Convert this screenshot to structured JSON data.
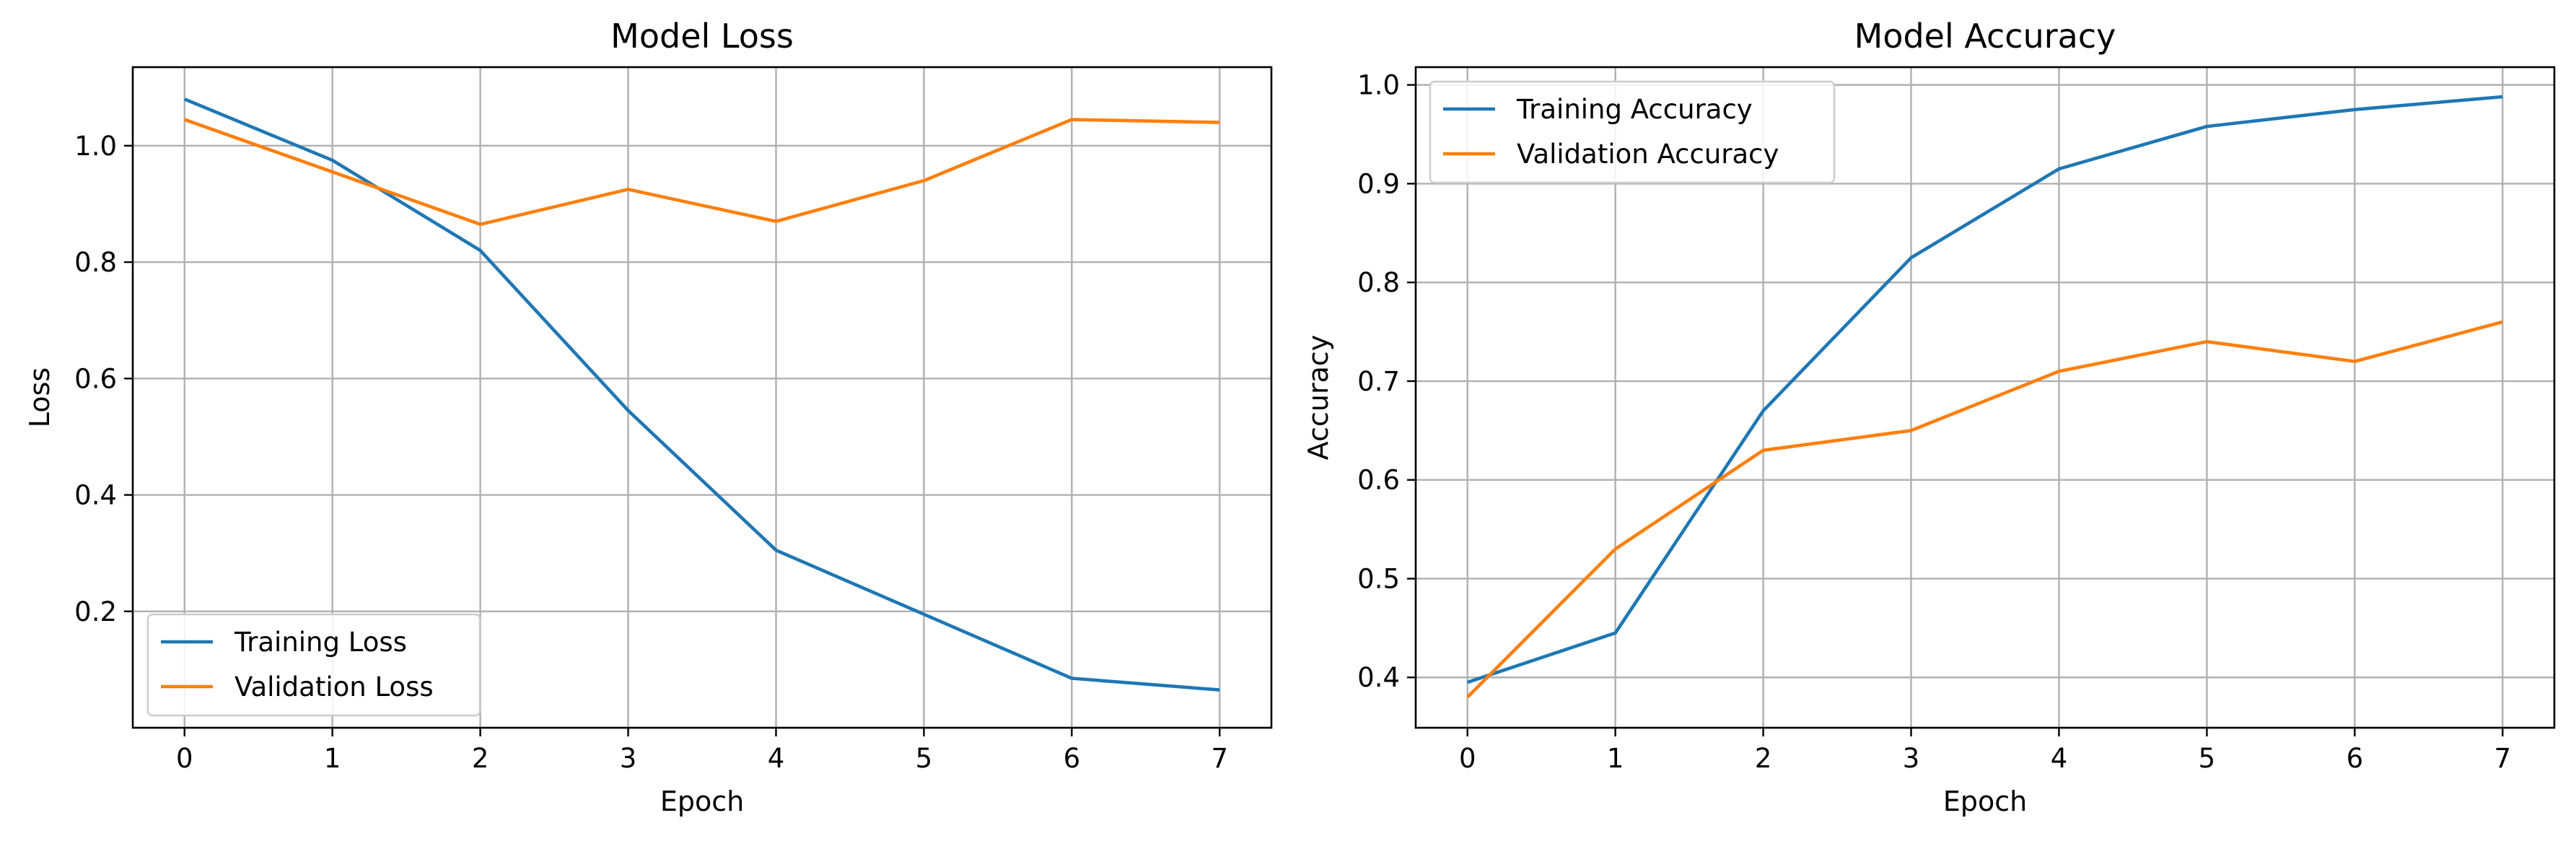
{
  "chart_data": [
    {
      "type": "line",
      "title": "Model Loss",
      "xlabel": "Epoch",
      "ylabel": "Loss",
      "x": [
        0,
        1,
        2,
        3,
        4,
        5,
        6,
        7
      ],
      "xticks": [
        "0",
        "1",
        "2",
        "3",
        "4",
        "5",
        "6",
        "7"
      ],
      "yticks": [
        "0.2",
        "0.4",
        "0.6",
        "0.8",
        "1.0"
      ],
      "xlim": [
        -0.35,
        7.35
      ],
      "ylim": [
        0.0,
        1.135
      ],
      "grid": true,
      "legend_position": "lower-left",
      "series": [
        {
          "name": "Training Loss",
          "color": "#1f77b4",
          "values": [
            1.08,
            0.975,
            0.82,
            0.545,
            0.305,
            0.195,
            0.085,
            0.065
          ]
        },
        {
          "name": "Validation Loss",
          "color": "#ff7f0e",
          "values": [
            1.045,
            0.955,
            0.865,
            0.925,
            0.87,
            0.94,
            1.045,
            1.04
          ]
        }
      ]
    },
    {
      "type": "line",
      "title": "Model Accuracy",
      "xlabel": "Epoch",
      "ylabel": "Accuracy",
      "x": [
        0,
        1,
        2,
        3,
        4,
        5,
        6,
        7
      ],
      "xticks": [
        "0",
        "1",
        "2",
        "3",
        "4",
        "5",
        "6",
        "7"
      ],
      "yticks": [
        "0.4",
        "0.5",
        "0.6",
        "0.7",
        "0.8",
        "0.9",
        "1.0"
      ],
      "xlim": [
        -0.35,
        7.35
      ],
      "ylim": [
        0.349,
        1.018
      ],
      "grid": true,
      "legend_position": "upper-left",
      "series": [
        {
          "name": "Training Accuracy",
          "color": "#1f77b4",
          "values": [
            0.395,
            0.445,
            0.67,
            0.825,
            0.915,
            0.958,
            0.975,
            0.988
          ]
        },
        {
          "name": "Validation Accuracy",
          "color": "#ff7f0e",
          "values": [
            0.38,
            0.53,
            0.63,
            0.65,
            0.71,
            0.74,
            0.72,
            0.76
          ]
        }
      ]
    }
  ]
}
